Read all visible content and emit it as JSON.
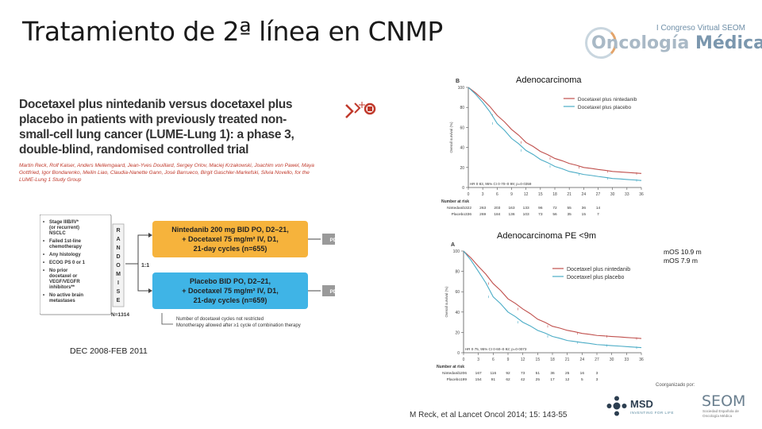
{
  "slide": {
    "title": "Tratamiento de 2ª línea en CNMP",
    "period": "DEC 2008-FEB 2011",
    "reference": "M Reck, et al Lancet Oncol 2014; 15: 143-55"
  },
  "brand": {
    "top": "I Congreso Virtual SEOM",
    "main_a": "Oncología",
    "main_b": "Médica"
  },
  "paper": {
    "title": "Docetaxel plus nintedanib versus docetaxel plus placebo in patients with previously treated non-small-cell lung cancer (LUME-Lung 1): a phase 3, double-blind, randomised controlled trial",
    "authors": "Martin Reck, Rolf Kaiser, Anders Mellemgaard, Jean-Yves Douillard, Sergey Orlov, Maciej Krzakowski, Joachim von Pawel, Maya Gottfried, Igor Bondarenko, Meilin Liao, Claudia-Nanette Gann, José Barrueco, Birgit Gaschler-Markefski, Silvia Novello, for the LUME-Lung 1 Study Group"
  },
  "design": {
    "eligibility": [
      "Stage IIIB/IV* (or recurrent) NSCLC",
      "Failed 1st-line chemotherapy",
      "Any histology",
      "ECOG PS 0 or 1",
      "No prior docetaxel or VEGF/VEGFR inhibitors**",
      "No active brain metastases"
    ],
    "randomise_letters": [
      "R",
      "A",
      "N",
      "D",
      "O",
      "M",
      "I",
      "S",
      "E"
    ],
    "ratio": "1:1",
    "n_total": "N=1314",
    "arm1": [
      "Nintedanib 200 mg BID PO, D2–21,",
      "+ Docetaxel 75 mg/m² IV, D1,",
      "21-day cycles (n=655)"
    ],
    "arm2": [
      "Placebo BID PO, D2–21,",
      "+ Docetaxel 75 mg/m² IV, D1,",
      "21-day cycles (n=659)"
    ],
    "pd": "PD",
    "footnote": [
      "Number of docetaxel cycles not restricted",
      "Monotherapy allowed after ≥1 cycle of combination therapy"
    ],
    "colors": {
      "arm1": "#f6b33c",
      "arm2": "#3fb4e6"
    }
  },
  "chart_titles": [
    "Adenocarcinoma",
    "Adenocarcinoma PE <9m"
  ],
  "mos": [
    "mOS 10.9 m",
    "mOS  7.9 m"
  ],
  "sponsors": {
    "msd": "MSD",
    "msd_sub": "INVENTING FOR LIFE",
    "organized": "Coorganizado por:",
    "seom": "SEOM",
    "seom_sub": "Sociedad Española de Oncología Médica"
  },
  "chart_data": [
    {
      "type": "line",
      "panel": "B",
      "title": "Adenocarcinoma",
      "ylabel": "Overall survival (%)",
      "ylim": [
        0,
        100
      ],
      "yticks": [
        0,
        20,
        40,
        60,
        80,
        100
      ],
      "x": [
        0,
        3,
        6,
        9,
        12,
        15,
        18,
        21,
        24,
        27,
        30,
        33,
        36
      ],
      "xticks": [
        "0",
        "3",
        "6",
        "9",
        "12",
        "15",
        "18",
        "21",
        "24",
        "27",
        "30",
        "33",
        "36"
      ],
      "series": [
        {
          "name": "Docetaxel plus nintedanib",
          "color": "#c0504d",
          "values": [
            100,
            88,
            72,
            58,
            45,
            36,
            29,
            24,
            20,
            18,
            16,
            15,
            14
          ]
        },
        {
          "name": "Docetaxel plus placebo",
          "color": "#4bacc6",
          "values": [
            100,
            85,
            64,
            49,
            37,
            28,
            21,
            16,
            13,
            11,
            9,
            8,
            7
          ]
        }
      ],
      "annotation": "HR 0·83, 95% CI 0·70–0·99; p=0·0359",
      "risk_table": {
        "label": "Number at risk",
        "rows": [
          {
            "name": "Nintedanib",
            "values": [
              "322",
              "263",
              "203",
              "163",
              "133",
              "96",
              "72",
              "55",
              "36",
              "14"
            ]
          },
          {
            "name": "Placebo",
            "values": [
              "336",
              "269",
              "184",
              "136",
              "103",
              "73",
              "56",
              "35",
              "15",
              "7"
            ]
          }
        ]
      }
    },
    {
      "type": "line",
      "panel": "A",
      "title": "Adenocarcinoma PE <9m",
      "ylabel": "Overall survival (%)",
      "ylim": [
        0,
        100
      ],
      "yticks": [
        0,
        20,
        40,
        60,
        80,
        100
      ],
      "x": [
        0,
        3,
        6,
        9,
        12,
        15,
        18,
        21,
        24,
        27,
        30,
        33,
        36
      ],
      "xticks": [
        "0",
        "3",
        "6",
        "9",
        "12",
        "15",
        "18",
        "21",
        "24",
        "27",
        "30",
        "33",
        "36"
      ],
      "series": [
        {
          "name": "Docetaxel plus nintedanib",
          "color": "#c0504d",
          "values": [
            100,
            85,
            68,
            53,
            43,
            33,
            26,
            22,
            19,
            17,
            16,
            15,
            14
          ]
        },
        {
          "name": "Docetaxel plus placebo",
          "color": "#4bacc6",
          "values": [
            100,
            80,
            55,
            40,
            30,
            22,
            16,
            12,
            10,
            8,
            7,
            6,
            5
          ]
        }
      ],
      "annotation": "HR 0·75, 95% CI 0·60–0·92; p=0·0073",
      "risk_table": {
        "label": "Number at risk",
        "rows": [
          {
            "name": "Nintedanib",
            "values": [
              "206",
              "167",
              "116",
              "92",
              "73",
              "51",
              "36",
              "25",
              "16",
              "3"
            ]
          },
          {
            "name": "Placebo",
            "values": [
              "199",
              "154",
              "91",
              "62",
              "42",
              "25",
              "17",
              "12",
              "5",
              "3"
            ]
          }
        ]
      }
    }
  ]
}
